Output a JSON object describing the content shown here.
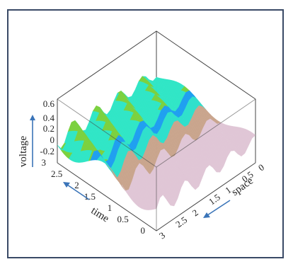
{
  "chart_data": {
    "type": "surface",
    "title": "",
    "axes": {
      "z": {
        "label": "voltage",
        "ticks": [
          "0.6",
          "0.4",
          "0.2",
          "0",
          "-0.2"
        ],
        "range": [
          -0.2,
          0.6
        ]
      },
      "time": {
        "label": "time",
        "ticks": [
          "3",
          "2.5",
          "2",
          "1.5",
          "1",
          "0.5",
          "0"
        ],
        "range": [
          0,
          3
        ]
      },
      "space": {
        "label": "space",
        "ticks": [
          "0",
          "0.5",
          "1",
          "1.5",
          "2",
          "2.5",
          "3"
        ],
        "range": [
          0,
          3
        ]
      }
    },
    "colormap": [
      "#7bd13f",
      "#30e6c6",
      "#1f9ff0",
      "#c9a58d",
      "#dcb7c6"
    ],
    "arrow_color": "#3a74b8",
    "frame_color": "#3a4a66"
  }
}
